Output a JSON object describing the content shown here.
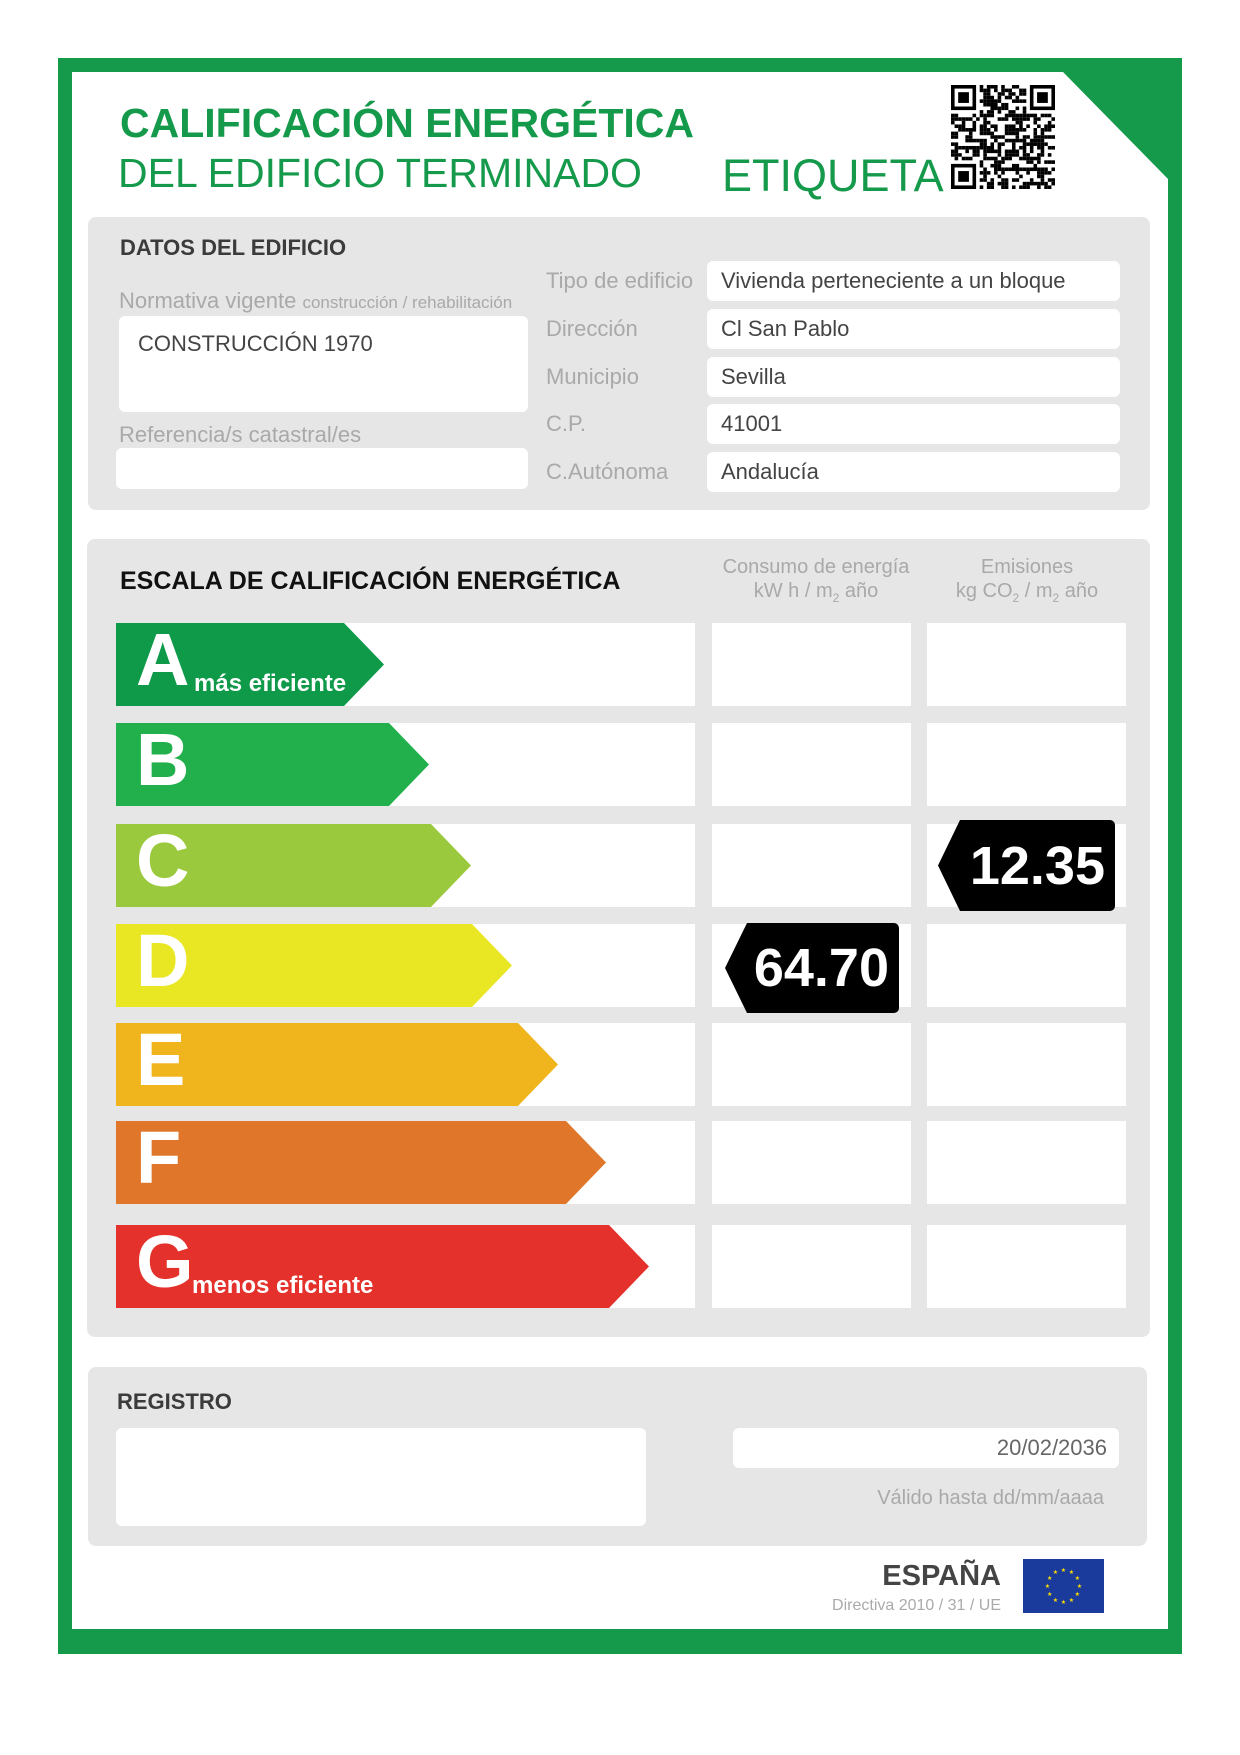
{
  "header": {
    "title_line1": "CALIFICACIÓN ENERGÉTICA",
    "title_line2": "DEL EDIFICIO TERMINADO",
    "label": "ETIQUETA",
    "qr_icon": "qr-code-icon"
  },
  "brand_color": "#159a4c",
  "datos": {
    "heading": "DATOS DEL EDIFICIO",
    "normativa_label": "Normativa vigente",
    "normativa_sub": "construcción / rehabilitación",
    "normativa_value": "CONSTRUCCIÓN 1970",
    "referencia_label": "Referencia/s catastral/es",
    "fields": [
      {
        "label": "Tipo de edificio",
        "value": "Vivienda perteneciente a un bloque"
      },
      {
        "label": "Dirección",
        "value": "Cl San Pablo"
      },
      {
        "label": "Municipio",
        "value": "Sevilla"
      },
      {
        "label": "C.P.",
        "value": "41001"
      },
      {
        "label": "C.Autónoma",
        "value": "Andalucía"
      }
    ]
  },
  "escala": {
    "heading": "ESCALA DE CALIFICACIÓN ENERGÉTICA",
    "consumo_h1": "Consumo de energía",
    "consumo_h2a": "kW h / m",
    "consumo_h2sub": "2",
    "consumo_h2b": " año",
    "emis_h1": "Emisiones",
    "emis_h2a": "kg CO",
    "emis_h2sub1": "2",
    "emis_h2mid": " / m",
    "emis_h2sub2": "2",
    "emis_h2b": " año",
    "classes": [
      {
        "letter": "A",
        "sub": "más eficiente",
        "color": "#0f9a4a"
      },
      {
        "letter": "B",
        "sub": "",
        "color": "#21b04b"
      },
      {
        "letter": "C",
        "sub": "",
        "color": "#9bc93d"
      },
      {
        "letter": "D",
        "sub": "",
        "color": "#e9e724"
      },
      {
        "letter": "E",
        "sub": "",
        "color": "#f0b41c"
      },
      {
        "letter": "F",
        "sub": "",
        "color": "#e07629"
      },
      {
        "letter": "G",
        "sub": "menos eficiente",
        "color": "#e4312b"
      }
    ],
    "consumo": {
      "value": "64.70",
      "class": "D"
    },
    "emisiones": {
      "value": "12.35",
      "class": "C"
    }
  },
  "registro": {
    "heading": "REGISTRO",
    "date": "20/02/2036",
    "valid_label": "Válido hasta dd/mm/aaaa"
  },
  "footer": {
    "country": "ESPAÑA",
    "directive": "Directiva 2010 / 31 / UE",
    "flag_icon": "eu-flag-icon"
  }
}
